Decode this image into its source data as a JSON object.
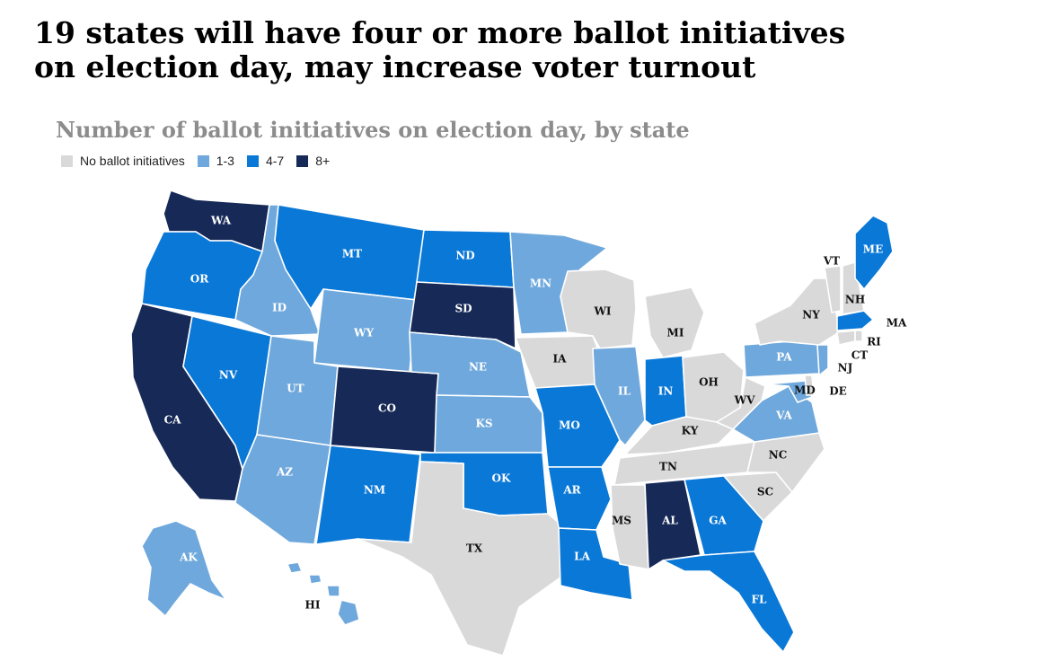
{
  "title": {
    "line1": "19 states will have four or more ballot initiatives",
    "line2": "on election day, may increase voter turnout"
  },
  "subtitle": "Number of ballot initiatives on election day, by state",
  "colors": {
    "none": "#d9d9d9",
    "1-3": "#6fa8dc",
    "4-7": "#0a78d7",
    "8+": "#172a57"
  },
  "legend": [
    {
      "key": "none",
      "label": "No ballot initiatives"
    },
    {
      "key": "1-3",
      "label": "1-3"
    },
    {
      "key": "4-7",
      "label": "4-7"
    },
    {
      "key": "8+",
      "label": "8+"
    }
  ],
  "states": [
    {
      "abbr": "WA",
      "category": "8+"
    },
    {
      "abbr": "OR",
      "category": "4-7"
    },
    {
      "abbr": "CA",
      "category": "8+"
    },
    {
      "abbr": "NV",
      "category": "4-7"
    },
    {
      "abbr": "ID",
      "category": "1-3"
    },
    {
      "abbr": "MT",
      "category": "4-7"
    },
    {
      "abbr": "WY",
      "category": "1-3"
    },
    {
      "abbr": "UT",
      "category": "1-3"
    },
    {
      "abbr": "AZ",
      "category": "1-3"
    },
    {
      "abbr": "CO",
      "category": "8+"
    },
    {
      "abbr": "NM",
      "category": "4-7"
    },
    {
      "abbr": "ND",
      "category": "4-7"
    },
    {
      "abbr": "SD",
      "category": "8+"
    },
    {
      "abbr": "NE",
      "category": "1-3"
    },
    {
      "abbr": "KS",
      "category": "1-3"
    },
    {
      "abbr": "OK",
      "category": "4-7"
    },
    {
      "abbr": "TX",
      "category": "none"
    },
    {
      "abbr": "MN",
      "category": "1-3"
    },
    {
      "abbr": "IA",
      "category": "none"
    },
    {
      "abbr": "MO",
      "category": "4-7"
    },
    {
      "abbr": "AR",
      "category": "4-7"
    },
    {
      "abbr": "LA",
      "category": "4-7"
    },
    {
      "abbr": "WI",
      "category": "none"
    },
    {
      "abbr": "IL",
      "category": "1-3"
    },
    {
      "abbr": "MI",
      "category": "none"
    },
    {
      "abbr": "IN",
      "category": "4-7"
    },
    {
      "abbr": "OH",
      "category": "none"
    },
    {
      "abbr": "KY",
      "category": "none"
    },
    {
      "abbr": "TN",
      "category": "none"
    },
    {
      "abbr": "MS",
      "category": "none"
    },
    {
      "abbr": "AL",
      "category": "8+"
    },
    {
      "abbr": "GA",
      "category": "4-7"
    },
    {
      "abbr": "FL",
      "category": "4-7"
    },
    {
      "abbr": "SC",
      "category": "none"
    },
    {
      "abbr": "NC",
      "category": "none"
    },
    {
      "abbr": "VA",
      "category": "1-3"
    },
    {
      "abbr": "WV",
      "category": "none"
    },
    {
      "abbr": "MD",
      "category": "1-3"
    },
    {
      "abbr": "DE",
      "category": "none"
    },
    {
      "abbr": "PA",
      "category": "1-3"
    },
    {
      "abbr": "NJ",
      "category": "1-3"
    },
    {
      "abbr": "NY",
      "category": "none"
    },
    {
      "abbr": "CT",
      "category": "none"
    },
    {
      "abbr": "RI",
      "category": "none"
    },
    {
      "abbr": "MA",
      "category": "4-7"
    },
    {
      "abbr": "VT",
      "category": "none"
    },
    {
      "abbr": "NH",
      "category": "none"
    },
    {
      "abbr": "ME",
      "category": "4-7"
    },
    {
      "abbr": "AK",
      "category": "1-3"
    },
    {
      "abbr": "HI",
      "category": "1-3"
    }
  ]
}
